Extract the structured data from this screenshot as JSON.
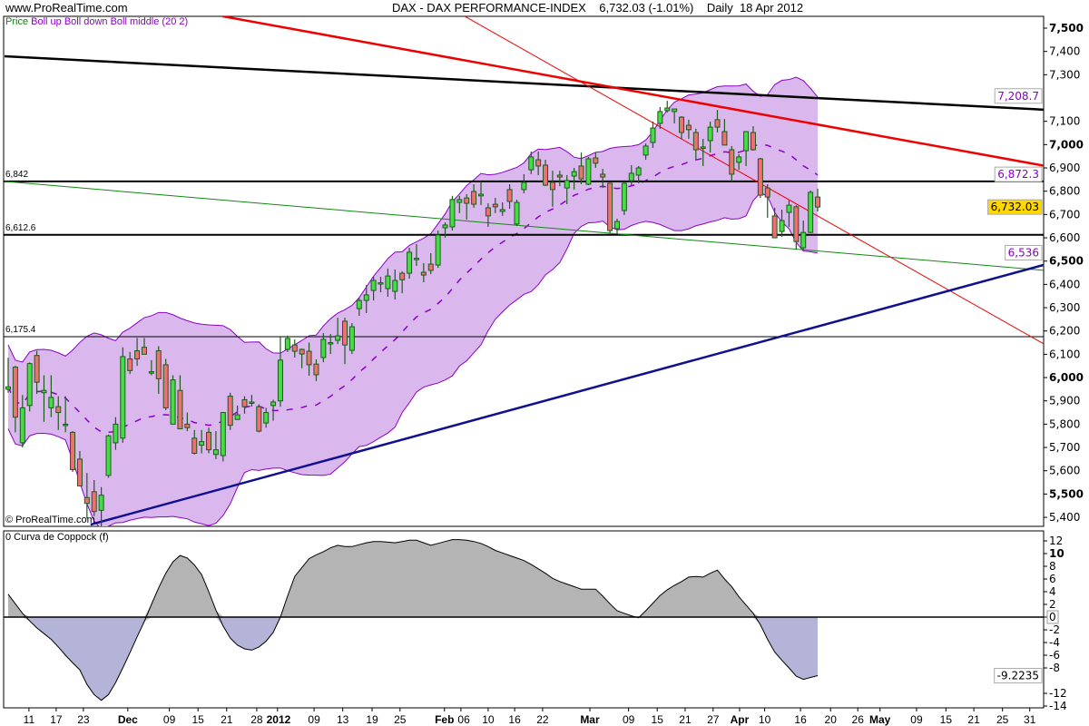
{
  "header": {
    "site": "www.ProRealTime.com",
    "instrument": "DAX - DAX PERFORMANCE-INDEX",
    "last": "6,732.03",
    "change": "(-1.01%)",
    "period": "Daily",
    "date": "18 Apr 2012"
  },
  "legend": {
    "price": "Price",
    "bollinger": "Boll up Boll down Boll middle (20 2)"
  },
  "copyright": "© ProRealTime.com",
  "colors": {
    "up_candle": "#44dd44",
    "down_candle": "#ef7070",
    "candle_border": "#1d5a1d",
    "band_fill": "#dab8ee",
    "band_line": "#8a00c8",
    "coppock_positive": "#b4b4b4",
    "coppock_negative": "#b4b4d8",
    "last_price_bg": "#ffd800"
  },
  "chart_data": [
    {
      "type": "candlestick",
      "title": "DAX - DAX PERFORMANCE-INDEX",
      "ylim": [
        5350,
        7580
      ],
      "grid": false,
      "indicator": "Bollinger (20 2)",
      "candles_ohlc": [
        [
          5950,
          6085,
          5935,
          5960
        ],
        [
          6045,
          6050,
          5765,
          5830
        ],
        [
          5720,
          5925,
          5700,
          5870
        ],
        [
          5880,
          6065,
          5855,
          6060
        ],
        [
          6095,
          6115,
          5930,
          5980
        ],
        [
          5935,
          6010,
          5810,
          5945
        ],
        [
          5870,
          6010,
          5830,
          5915
        ],
        [
          5875,
          5920,
          5775,
          5850
        ],
        [
          5800,
          5920,
          5765,
          5800
        ],
        [
          5765,
          5770,
          5595,
          5605
        ],
        [
          5650,
          5685,
          5535,
          5535
        ],
        [
          5485,
          5590,
          5395,
          5460
        ],
        [
          5510,
          5560,
          5405,
          5425
        ],
        [
          5430,
          5530,
          5360,
          5495
        ],
        [
          5580,
          5755,
          5570,
          5750
        ],
        [
          5720,
          5830,
          5690,
          5800
        ],
        [
          5740,
          6130,
          5720,
          6090
        ],
        [
          6080,
          6110,
          6015,
          6030
        ],
        [
          6115,
          6170,
          6050,
          6080
        ],
        [
          6130,
          6170,
          6100,
          6100
        ],
        [
          6020,
          6075,
          6010,
          6025
        ],
        [
          6115,
          6135,
          5930,
          5995
        ],
        [
          6055,
          6080,
          5860,
          5870
        ],
        [
          5800,
          6010,
          5800,
          5990
        ],
        [
          5945,
          6010,
          5780,
          5780
        ],
        [
          5800,
          5850,
          5770,
          5785
        ],
        [
          5740,
          5775,
          5670,
          5675
        ],
        [
          5710,
          5775,
          5675,
          5725
        ],
        [
          5765,
          5785,
          5675,
          5690
        ],
        [
          5670,
          5770,
          5650,
          5690
        ],
        [
          5665,
          5850,
          5640,
          5850
        ],
        [
          5920,
          5935,
          5775,
          5795
        ],
        [
          5820,
          5880,
          5820,
          5840
        ],
        [
          5905,
          5920,
          5845,
          5875
        ],
        [
          5895,
          5925,
          5875,
          5890
        ],
        [
          5875,
          5885,
          5765,
          5770
        ],
        [
          5805,
          5870,
          5785,
          5850
        ],
        [
          5880,
          5905,
          5815,
          5895
        ],
        [
          5900,
          6175,
          5875,
          6075
        ],
        [
          6121,
          6180,
          6110,
          6168
        ],
        [
          6140,
          6164,
          6086,
          6113
        ],
        [
          6121,
          6125,
          6040,
          6101
        ],
        [
          6113,
          6150,
          6008,
          6055
        ],
        [
          6058,
          6078,
          5985,
          6012
        ],
        [
          6086,
          6191,
          6066,
          6164
        ],
        [
          6145,
          6187,
          6101,
          6150
        ],
        [
          6160,
          6257,
          6144,
          6179
        ],
        [
          6242,
          6257,
          6058,
          6140
        ],
        [
          6117,
          6234,
          6101,
          6218
        ],
        [
          6296,
          6343,
          6265,
          6331
        ],
        [
          6331,
          6397,
          6277,
          6355
        ],
        [
          6374,
          6432,
          6331,
          6417
        ],
        [
          6403,
          6432,
          6366,
          6407
        ],
        [
          6382,
          6468,
          6347,
          6436
        ],
        [
          6370,
          6464,
          6335,
          6417
        ],
        [
          6448,
          6456,
          6362,
          6420
        ],
        [
          6448,
          6557,
          6425,
          6538
        ],
        [
          6508,
          6573,
          6479,
          6512
        ],
        [
          6452,
          6491,
          6409,
          6440
        ],
        [
          6487,
          6534,
          6444,
          6460
        ],
        [
          6483,
          6631,
          6471,
          6612
        ],
        [
          6643,
          6666,
          6600,
          6655
        ],
        [
          6647,
          6780,
          6631,
          6764
        ],
        [
          6752,
          6780,
          6706,
          6764
        ],
        [
          6771,
          6787,
          6678,
          6748
        ],
        [
          6799,
          6830,
          6729,
          6744
        ],
        [
          6780,
          6842,
          6741,
          6787
        ],
        [
          6729,
          6748,
          6647,
          6694
        ],
        [
          6744,
          6771,
          6706,
          6733
        ],
        [
          6713,
          6752,
          6694,
          6721
        ],
        [
          6807,
          6830,
          6725,
          6756
        ],
        [
          6659,
          6764,
          6651,
          6752
        ],
        [
          6807,
          6873,
          6791,
          6838
        ],
        [
          6892,
          6970,
          6873,
          6947
        ],
        [
          6935,
          6970,
          6869,
          6908
        ],
        [
          6912,
          6935,
          6822,
          6826
        ],
        [
          6838,
          6888,
          6733,
          6807
        ],
        [
          6869,
          6888,
          6822,
          6861
        ],
        [
          6814,
          6869,
          6744,
          6846
        ],
        [
          6865,
          6900,
          6807,
          6884
        ],
        [
          6908,
          6966,
          6830,
          6853
        ],
        [
          6830,
          6947,
          6826,
          6939
        ],
        [
          6943,
          6966,
          6900,
          6920
        ],
        [
          6873,
          6896,
          6814,
          6861
        ],
        [
          6834,
          6834,
          6620,
          6631
        ],
        [
          6639,
          6682,
          6616,
          6670
        ],
        [
          6717,
          6842,
          6698,
          6834
        ],
        [
          6845,
          6912,
          6826,
          6877
        ],
        [
          6869,
          6908,
          6834,
          6900
        ],
        [
          6955,
          7005,
          6935,
          6994
        ],
        [
          7009,
          7099,
          6986,
          7071
        ],
        [
          7091,
          7161,
          7068,
          7142
        ],
        [
          7146,
          7188,
          7138,
          7157
        ],
        [
          7142,
          7153,
          7091,
          7153
        ],
        [
          7118,
          7122,
          7025,
          7052
        ],
        [
          7083,
          7107,
          7025,
          7064
        ],
        [
          7052,
          7068,
          6935,
          6978
        ],
        [
          6986,
          7025,
          6908,
          6990
        ],
        [
          7017,
          7099,
          6966,
          7075
        ],
        [
          7107,
          7149,
          7052,
          7075
        ],
        [
          7056,
          7110,
          6998,
          6998
        ],
        [
          6978,
          6994,
          6842,
          6873
        ],
        [
          6924,
          6959,
          6892,
          6947
        ],
        [
          6974,
          7056,
          6908,
          7056
        ],
        [
          7052,
          7079,
          6974,
          6978
        ],
        [
          6939,
          6943,
          6771,
          6783
        ],
        [
          6814,
          6830,
          6686,
          6775
        ],
        [
          6694,
          6729,
          6600,
          6600
        ],
        [
          6627,
          6721,
          6604,
          6674
        ],
        [
          6709,
          6760,
          6647,
          6740
        ],
        [
          6733,
          6740,
          6549,
          6584
        ],
        [
          6557,
          6674,
          6545,
          6623
        ],
        [
          6623,
          6803,
          6620,
          6795
        ],
        [
          6775,
          6811,
          6713,
          6732
        ]
      ],
      "horizontal_levels": [
        {
          "value": 6842,
          "label": "6,842",
          "weight": "thick"
        },
        {
          "value": 6612.6,
          "label": "6,612.6",
          "weight": "thick"
        },
        {
          "value": 6175.4,
          "label": "6,175.4",
          "weight": "thin"
        }
      ],
      "trendlines": [
        {
          "name": "black-resistance",
          "color": "#000000",
          "weight": "thick",
          "from": {
            "bar": -0.5,
            "price": 7379
          },
          "to": {
            "bar": 147.7,
            "price": 7145
          }
        },
        {
          "name": "red-resistance",
          "color": "#ee0000",
          "weight": "thick",
          "from": {
            "bar": 29.9,
            "price": 7551
          },
          "to": {
            "bar": 147.7,
            "price": 6892
          }
        },
        {
          "name": "red-steep",
          "color": "#ee0000",
          "weight": "thin",
          "from": {
            "bar": 59.7,
            "price": 7621
          },
          "to": {
            "bar": 147.7,
            "price": 6090
          }
        },
        {
          "name": "green-support",
          "color": "#118811",
          "weight": "thin",
          "from": {
            "bar": -0.5,
            "price": 6842
          },
          "to": {
            "bar": 147.7,
            "price": 6452
          }
        },
        {
          "name": "blue-support",
          "color": "#101090",
          "weight": "thick",
          "from": {
            "bar": 11.5,
            "price": 5369
          },
          "to": {
            "bar": 147.7,
            "price": 6510
          }
        }
      ],
      "yticks": [
        {
          "v": 7500,
          "label": "7,500",
          "bold": true
        },
        {
          "v": 7400,
          "label": "7,400"
        },
        {
          "v": 7300,
          "label": "7,300"
        },
        {
          "v": 7100,
          "label": "7,100"
        },
        {
          "v": 7000,
          "label": "7,000",
          "bold": true
        },
        {
          "v": 6900,
          "label": "6,900"
        },
        {
          "v": 6800,
          "label": "6,800"
        },
        {
          "v": 6700,
          "label": "6,700"
        },
        {
          "v": 6600,
          "label": "6,600"
        },
        {
          "v": 6500,
          "label": "6,500",
          "bold": true
        },
        {
          "v": 6400,
          "label": "6,400"
        },
        {
          "v": 6300,
          "label": "6,300"
        },
        {
          "v": 6200,
          "label": "6,200"
        },
        {
          "v": 6100,
          "label": "6,100"
        },
        {
          "v": 6000,
          "label": "6,000",
          "bold": true
        },
        {
          "v": 5900,
          "label": "5,900"
        },
        {
          "v": 5800,
          "label": "5,800"
        },
        {
          "v": 5700,
          "label": "5,700"
        },
        {
          "v": 5600,
          "label": "5,600"
        },
        {
          "v": 5500,
          "label": "5,500",
          "bold": true
        },
        {
          "v": 5400,
          "label": "5,400"
        }
      ],
      "markers": [
        {
          "v": 7208.7,
          "label": "7,208.7",
          "kind": "band"
        },
        {
          "v": 6872.3,
          "label": "6,872.3",
          "kind": "band"
        },
        {
          "v": 6732.03,
          "label": "6,732.03",
          "kind": "price"
        },
        {
          "v": 6536,
          "label": "6,536",
          "kind": "band"
        }
      ]
    },
    {
      "type": "area",
      "title": "0 Curva de Coppock (f)",
      "ylim": [
        -15,
        13
      ],
      "values": [
        3.6,
        2.1,
        0.6,
        -0.6,
        -1.7,
        -2.6,
        -3.5,
        -4.7,
        -6.0,
        -7.2,
        -8.3,
        -10.6,
        -12.2,
        -13.1,
        -12.2,
        -10.3,
        -8.0,
        -5.6,
        -3.1,
        -0.7,
        2.0,
        4.6,
        6.9,
        8.7,
        9.7,
        9.3,
        8.2,
        6.7,
        4.0,
        1.1,
        -1.4,
        -3.3,
        -4.4,
        -5.0,
        -5.2,
        -4.7,
        -3.8,
        -2.4,
        0,
        3.3,
        6.4,
        7.8,
        9.2,
        9.8,
        10.3,
        10.9,
        11.3,
        11.1,
        11.1,
        11.4,
        11.7,
        11.9,
        11.9,
        11.8,
        11.7,
        11.9,
        12.1,
        12.1,
        11.7,
        11.3,
        11.6,
        11.9,
        12.2,
        12.2,
        12.1,
        11.9,
        11.6,
        11.1,
        10.5,
        10.1,
        9.7,
        9.3,
        8.9,
        8.3,
        7.6,
        6.9,
        6.1,
        5.6,
        5.2,
        4.8,
        4.4,
        4.4,
        4.4,
        3.3,
        2.1,
        1.0,
        0.6,
        0.2,
        -0.1,
        1.0,
        2.2,
        3.4,
        4.3,
        5.0,
        5.6,
        6.3,
        6.4,
        6.3,
        6.9,
        7.4,
        6.0,
        4.8,
        3.2,
        1.9,
        0.6,
        -1.2,
        -3.5,
        -5.5,
        -6.8,
        -8.0,
        -9.3,
        -9.8,
        -9.5,
        -9.22
      ],
      "yticks": [
        {
          "v": 12,
          "label": "12"
        },
        {
          "v": 10,
          "label": "10",
          "bold": true
        },
        {
          "v": 8,
          "label": "8"
        },
        {
          "v": 6,
          "label": "6"
        },
        {
          "v": 4,
          "label": "4"
        },
        {
          "v": 2,
          "label": "2"
        },
        {
          "v": 0,
          "label": "0",
          "boxed": true
        },
        {
          "v": -2,
          "label": "-2"
        },
        {
          "v": -4,
          "label": "-4"
        },
        {
          "v": -6,
          "label": "-6"
        },
        {
          "v": -8,
          "label": "-8"
        },
        {
          "v": -12,
          "label": "-12"
        },
        {
          "v": -14,
          "label": "-14"
        }
      ],
      "markers": [
        {
          "v": -9.2235,
          "label": "-9.2235"
        }
      ]
    }
  ],
  "xaxis": {
    "ticks": [
      {
        "bar": 2.9,
        "label": "11"
      },
      {
        "bar": 6.7,
        "label": "17"
      },
      {
        "bar": 10.5,
        "label": "23"
      },
      {
        "bar": 16.7,
        "label": "Dec",
        "bold": true
      },
      {
        "bar": 22.5,
        "label": "09"
      },
      {
        "bar": 26.5,
        "label": "15"
      },
      {
        "bar": 30.5,
        "label": "21"
      },
      {
        "bar": 34.7,
        "label": "28"
      },
      {
        "bar": 37.6,
        "label": "2012",
        "bold": true
      },
      {
        "bar": 42.7,
        "label": "09"
      },
      {
        "bar": 46.7,
        "label": "13"
      },
      {
        "bar": 50.8,
        "label": "19"
      },
      {
        "bar": 54.7,
        "label": "25"
      },
      {
        "bar": 60.9,
        "label": "Feb",
        "bold": true
      },
      {
        "bar": 63.2,
        "label": "06"
      },
      {
        "bar": 67,
        "label": "10"
      },
      {
        "bar": 70.7,
        "label": "16"
      },
      {
        "bar": 74.6,
        "label": "22"
      },
      {
        "bar": 81.2,
        "label": "Mar",
        "bold": true
      },
      {
        "bar": 86.6,
        "label": "09"
      },
      {
        "bar": 90.6,
        "label": "15"
      },
      {
        "bar": 94.5,
        "label": "21"
      },
      {
        "bar": 98.4,
        "label": "27"
      },
      {
        "bar": 102.1,
        "label": "Apr",
        "bold": true
      },
      {
        "bar": 105.6,
        "label": "10"
      },
      {
        "bar": 110.6,
        "label": "16"
      },
      {
        "bar": 114.8,
        "label": "20"
      },
      {
        "bar": 118.6,
        "label": "26"
      },
      {
        "bar": 121.7,
        "label": "May",
        "bold": true
      },
      {
        "bar": 126.8,
        "label": "09"
      },
      {
        "bar": 130.9,
        "label": "15"
      },
      {
        "bar": 134.8,
        "label": "21"
      },
      {
        "bar": 138.8,
        "label": "25"
      },
      {
        "bar": 142.6,
        "label": "31"
      }
    ]
  }
}
